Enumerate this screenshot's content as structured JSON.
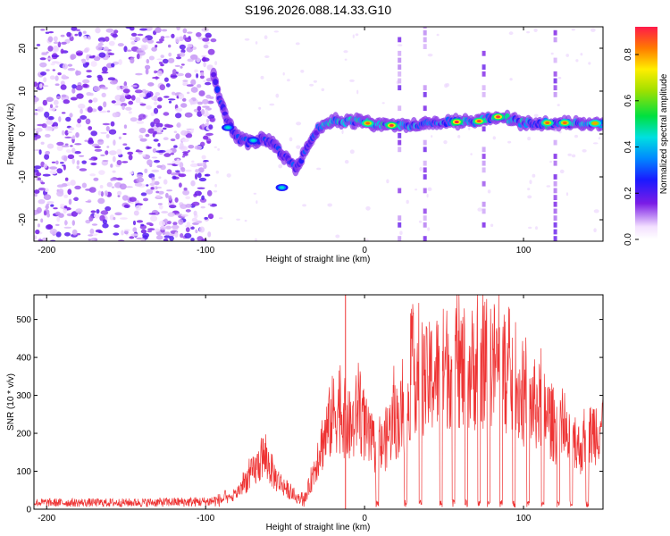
{
  "title": "S196.2026.088.14.33.G10",
  "chart_data": [
    {
      "type": "heatmap",
      "name": "spectrogram",
      "xlabel": "Height of straight line (km)",
      "ylabel": "Frequency (Hz)",
      "xlim": [
        -208,
        150
      ],
      "ylim": [
        -25,
        25
      ],
      "xticks": [
        -200,
        -100,
        0,
        100
      ],
      "yticks": [
        -20,
        -10,
        0,
        10,
        20
      ],
      "colorbar": {
        "label": "Normalized spectral amplitude",
        "range": [
          0,
          0.92
        ],
        "ticks": [
          "0.0",
          "0.2",
          "0.4",
          "0.6",
          "0.8"
        ],
        "tick_values": [
          0,
          0.2,
          0.4,
          0.6,
          0.8
        ]
      },
      "noise_region_x": [
        -208,
        -95
      ],
      "ridge": [
        {
          "x": -95,
          "f": 14
        },
        {
          "x": -90,
          "f": 7
        },
        {
          "x": -85,
          "f": 2
        },
        {
          "x": -80,
          "f": -1
        },
        {
          "x": -72,
          "f": -2
        },
        {
          "x": -65,
          "f": -1
        },
        {
          "x": -58,
          "f": -2
        },
        {
          "x": -52,
          "f": -5
        },
        {
          "x": -48,
          "f": -6
        },
        {
          "x": -44,
          "f": -8
        },
        {
          "x": -40,
          "f": -6
        },
        {
          "x": -35,
          "f": -2
        },
        {
          "x": -30,
          "f": 1
        },
        {
          "x": -20,
          "f": 3
        },
        {
          "x": -10,
          "f": 3
        },
        {
          "x": 0,
          "f": 3
        },
        {
          "x": 10,
          "f": 2
        },
        {
          "x": 20,
          "f": 2
        },
        {
          "x": 30,
          "f": 2
        },
        {
          "x": 40,
          "f": 2.5
        },
        {
          "x": 55,
          "f": 3
        },
        {
          "x": 70,
          "f": 3
        },
        {
          "x": 80,
          "f": 4
        },
        {
          "x": 90,
          "f": 3.5
        },
        {
          "x": 100,
          "f": 2.5
        },
        {
          "x": 120,
          "f": 2.5
        },
        {
          "x": 140,
          "f": 2.5
        },
        {
          "x": 150,
          "f": 2.5
        }
      ],
      "hotspots": [
        {
          "x": 2,
          "f": 2.5,
          "amp": 0.85
        },
        {
          "x": 17,
          "f": 2.0,
          "amp": 0.9
        },
        {
          "x": 58,
          "f": 2.8,
          "amp": 0.92
        },
        {
          "x": 72,
          "f": 3.0,
          "amp": 0.88
        },
        {
          "x": 84,
          "f": 4.0,
          "amp": 0.9
        },
        {
          "x": 115,
          "f": 2.6,
          "amp": 0.85
        },
        {
          "x": 126,
          "f": 2.6,
          "amp": 0.85
        },
        {
          "x": 145,
          "f": 2.5,
          "amp": 0.8
        },
        {
          "x": -52,
          "f": -12.5,
          "amp": 0.45
        },
        {
          "x": -70,
          "f": -1.5,
          "amp": 0.45
        },
        {
          "x": -86,
          "f": 1.5,
          "amp": 0.45
        }
      ],
      "vertical_streaks_x": [
        22,
        38,
        75,
        120
      ]
    },
    {
      "type": "line",
      "name": "snr",
      "xlabel": "Height of straight line (km)",
      "ylabel": "SNR (10 * v/v)",
      "xlim": [
        -208,
        150
      ],
      "ylim": [
        0,
        565
      ],
      "xticks": [
        -200,
        -100,
        0,
        100
      ],
      "yticks": [
        0,
        100,
        200,
        300,
        400,
        500
      ],
      "color": "#ee3333",
      "series": [
        {
          "name": "SNR envelope",
          "x": [
            -208,
            -150,
            -100,
            -90,
            -82,
            -75,
            -68,
            -64,
            -60,
            -56,
            -50,
            -44,
            -38,
            -32,
            -28,
            -25,
            -20,
            -16,
            -10,
            -6,
            -4,
            -2,
            2,
            6,
            10,
            14,
            18,
            22,
            26,
            30,
            34,
            38,
            44,
            50,
            56,
            62,
            68,
            74,
            80,
            86,
            90,
            96,
            102,
            108,
            114,
            120,
            126,
            132,
            138,
            144,
            150
          ],
          "y": [
            15,
            15,
            18,
            25,
            40,
            90,
            130,
            170,
            140,
            100,
            70,
            40,
            25,
            120,
            200,
            230,
            300,
            330,
            260,
            270,
            350,
            300,
            230,
            200,
            190,
            230,
            280,
            290,
            300,
            430,
            450,
            400,
            430,
            450,
            470,
            440,
            450,
            460,
            470,
            450,
            420,
            380,
            340,
            330,
            310,
            260,
            230,
            190,
            200,
            250,
            280
          ]
        }
      ],
      "dropouts_x": [
        8,
        26,
        35,
        48,
        56,
        64,
        72,
        78,
        86,
        94,
        103,
        112,
        122,
        130,
        140
      ],
      "peak_spike": {
        "x": -12,
        "y": 565
      }
    }
  ]
}
